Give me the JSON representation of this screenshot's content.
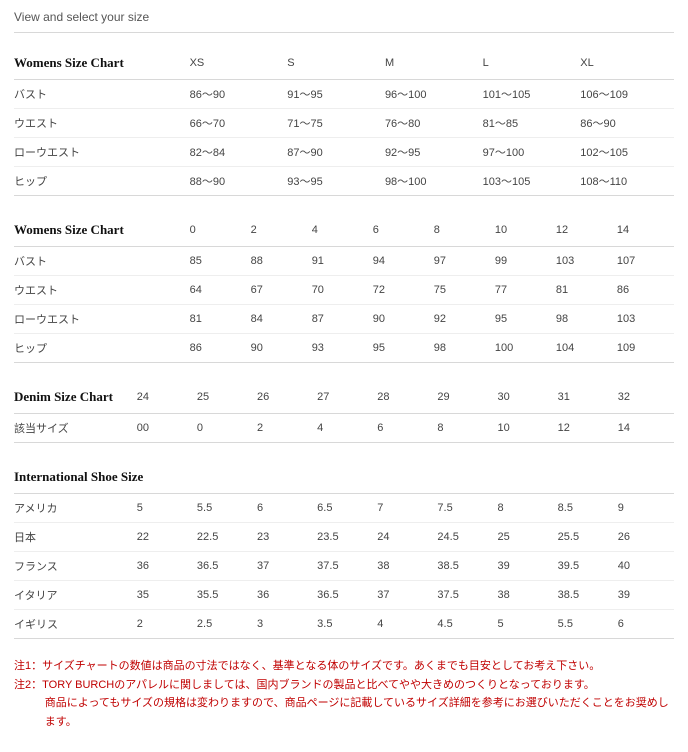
{
  "page_title": "View and select your size",
  "charts": [
    {
      "title": "Womens Size Chart",
      "label_col_width": "26%",
      "columns": [
        "XS",
        "S",
        "M",
        "L",
        "XL"
      ],
      "rows": [
        {
          "label": "バスト",
          "cells": [
            "86〜90",
            "91〜95",
            "96〜100",
            "101〜105",
            "106〜109"
          ]
        },
        {
          "label": "ウエスト",
          "cells": [
            "66〜70",
            "71〜75",
            "76〜80",
            "81〜85",
            "86〜90"
          ]
        },
        {
          "label": "ローウエスト",
          "cells": [
            "82〜84",
            "87〜90",
            "92〜95",
            "97〜100",
            "102〜105"
          ]
        },
        {
          "label": "ヒップ",
          "cells": [
            "88〜90",
            "93〜95",
            "98〜100",
            "103〜105",
            "108〜110"
          ]
        }
      ]
    },
    {
      "title": "Womens Size Chart",
      "label_col_width": "26%",
      "columns": [
        "0",
        "2",
        "4",
        "6",
        "8",
        "10",
        "12",
        "14"
      ],
      "rows": [
        {
          "label": "バスト",
          "cells": [
            "85",
            "88",
            "91",
            "94",
            "97",
            "99",
            "103",
            "107"
          ]
        },
        {
          "label": "ウエスト",
          "cells": [
            "64",
            "67",
            "70",
            "72",
            "75",
            "77",
            "81",
            "86"
          ]
        },
        {
          "label": "ローウエスト",
          "cells": [
            "81",
            "84",
            "87",
            "90",
            "92",
            "95",
            "98",
            "103"
          ]
        },
        {
          "label": "ヒップ",
          "cells": [
            "86",
            "90",
            "93",
            "95",
            "98",
            "100",
            "104",
            "109"
          ]
        }
      ]
    },
    {
      "title": "Denim Size Chart",
      "label_col_width": "18%",
      "columns": [
        "24",
        "25",
        "26",
        "27",
        "28",
        "29",
        "30",
        "31",
        "32"
      ],
      "rows": [
        {
          "label": "該当サイズ",
          "cells": [
            "00",
            "0",
            "2",
            "4",
            "6",
            "8",
            "10",
            "12",
            "14"
          ]
        }
      ]
    },
    {
      "title": "International Shoe Size",
      "label_col_width": "18%",
      "columns": [
        "5",
        "5.5",
        "6",
        "6.5",
        "7",
        "7.5",
        "8",
        "8.5",
        "9"
      ],
      "rows": [
        {
          "label": "アメリカ",
          "cells": [
            "5",
            "5.5",
            "6",
            "6.5",
            "7",
            "7.5",
            "8",
            "8.5",
            "9"
          ]
        },
        {
          "label": "日本",
          "cells": [
            "22",
            "22.5",
            "23",
            "23.5",
            "24",
            "24.5",
            "25",
            "25.5",
            "26"
          ]
        },
        {
          "label": "フランス",
          "cells": [
            "36",
            "36.5",
            "37",
            "37.5",
            "38",
            "38.5",
            "39",
            "39.5",
            "40"
          ]
        },
        {
          "label": "イタリア",
          "cells": [
            "35",
            "35.5",
            "36",
            "36.5",
            "37",
            "37.5",
            "38",
            "38.5",
            "39"
          ]
        },
        {
          "label": "イギリス",
          "cells": [
            "2",
            "2.5",
            "3",
            "3.5",
            "4",
            "4.5",
            "5",
            "5.5",
            "6"
          ]
        }
      ],
      "hide_header_row": true
    }
  ],
  "notes": [
    "注1：サイズチャートの数値は商品の寸法ではなく、基準となる体のサイズです。あくまでも目安としてお考え下さい。",
    "注2：TORY BURCHのアパレルに関しましては、国内ブランドの製品と比べてやや大きめのつくりとなっております。",
    "商品によってもサイズの規格は変わりますので、商品ページに記載しているサイズ詳細を参考にお選びいただくことをお奨めします。"
  ],
  "note_indent_from": 2
}
